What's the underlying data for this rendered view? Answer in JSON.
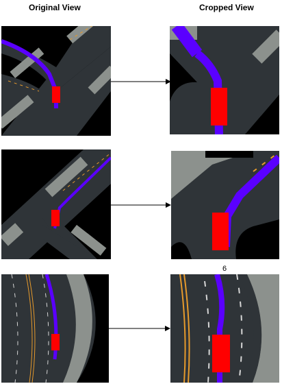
{
  "headers": {
    "original": "Original View",
    "cropped": "Cropped View"
  },
  "rows": [
    {
      "id": "row-1"
    },
    {
      "id": "row-2"
    },
    {
      "id": "row-3",
      "label": "6"
    }
  ],
  "colors": {
    "road": "#2f3438",
    "background": "#000000",
    "building": "#8c918d",
    "route": "#5a00ff",
    "vehicle": "#ff0000",
    "lane_yellow": "#e69a2c",
    "lane_white": "#d7d7d7"
  }
}
